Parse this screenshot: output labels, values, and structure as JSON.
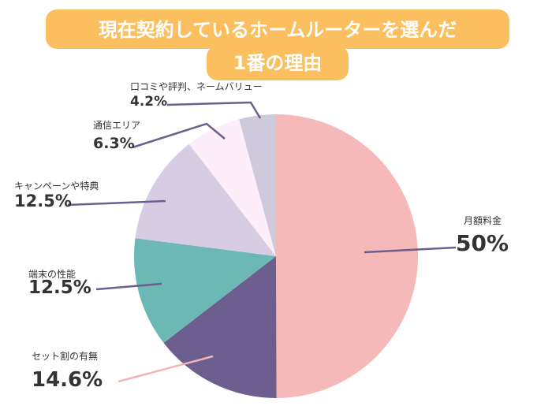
{
  "chart_data": {
    "type": "pie",
    "title": [
      "現在契約しているホームルーターを選んだ",
      "1番の理由"
    ],
    "categories": [
      "月額料金",
      "セット割の有無",
      "端末の性能",
      "キャンペーンや特典",
      "通信エリア",
      "口コミや評判、ネームバリュー"
    ],
    "values": [
      50,
      14.6,
      12.5,
      12.5,
      6.3,
      4.2
    ],
    "value_labels": [
      "50%",
      "14.6%",
      "12.5%",
      "12.5%",
      "6.3%",
      "4.2%"
    ],
    "colors": [
      "#f4b9b8",
      "#6c5f8f",
      "#6cb8b4",
      "#d6cde3",
      "#fdeef9",
      "#cfc9dc"
    ]
  }
}
